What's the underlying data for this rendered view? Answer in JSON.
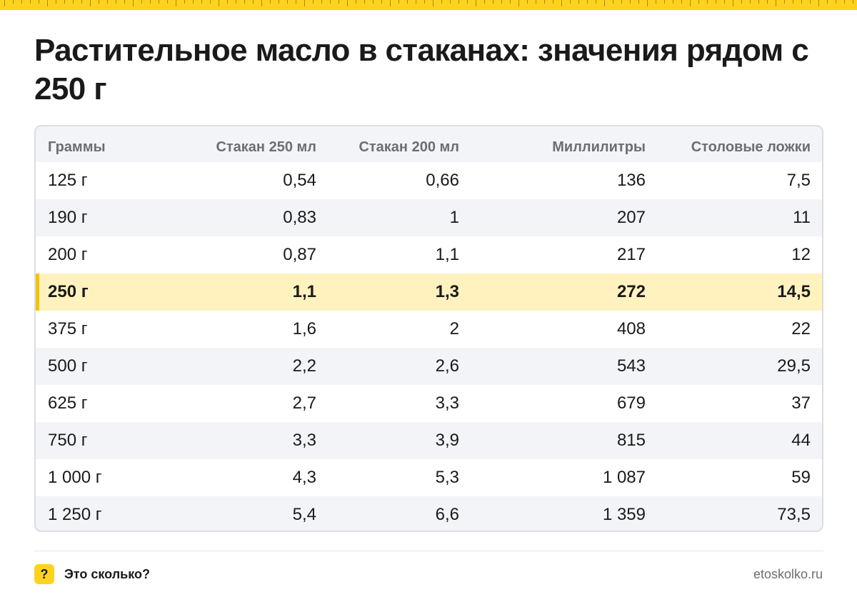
{
  "colors": {
    "accent": "#ffd21f",
    "highlight_row": "#fff2bf",
    "highlight_marker": "#f5c400",
    "alt_row": "#f3f4f7",
    "header_text": "#6b6e75",
    "border": "#dadde3"
  },
  "title": "Растительное масло в стаканах: значения рядом с 250 г",
  "table": {
    "headers": [
      "Граммы",
      "Стакан 250 мл",
      "Стакан 200 мл",
      "Миллилитры",
      "Столовые ложки"
    ],
    "highlight_index": 3,
    "rows": [
      [
        "125 г",
        "0,54",
        "0,66",
        "136",
        "7,5"
      ],
      [
        "190 г",
        "0,83",
        "1",
        "207",
        "11"
      ],
      [
        "200 г",
        "0,87",
        "1,1",
        "217",
        "12"
      ],
      [
        "250 г",
        "1,1",
        "1,3",
        "272",
        "14,5"
      ],
      [
        "375 г",
        "1,6",
        "2",
        "408",
        "22"
      ],
      [
        "500 г",
        "2,2",
        "2,6",
        "543",
        "29,5"
      ],
      [
        "625 г",
        "2,7",
        "3,3",
        "679",
        "37"
      ],
      [
        "750 г",
        "3,3",
        "3,9",
        "815",
        "44"
      ],
      [
        "1 000 г",
        "4,3",
        "5,3",
        "1 087",
        "59"
      ],
      [
        "1 250 г",
        "5,4",
        "6,6",
        "1 359",
        "73,5"
      ]
    ]
  },
  "footer": {
    "badge_icon": "question-mark-icon",
    "badge_glyph": "?",
    "brand": "Это сколько?",
    "site": "etoskolko.ru"
  }
}
